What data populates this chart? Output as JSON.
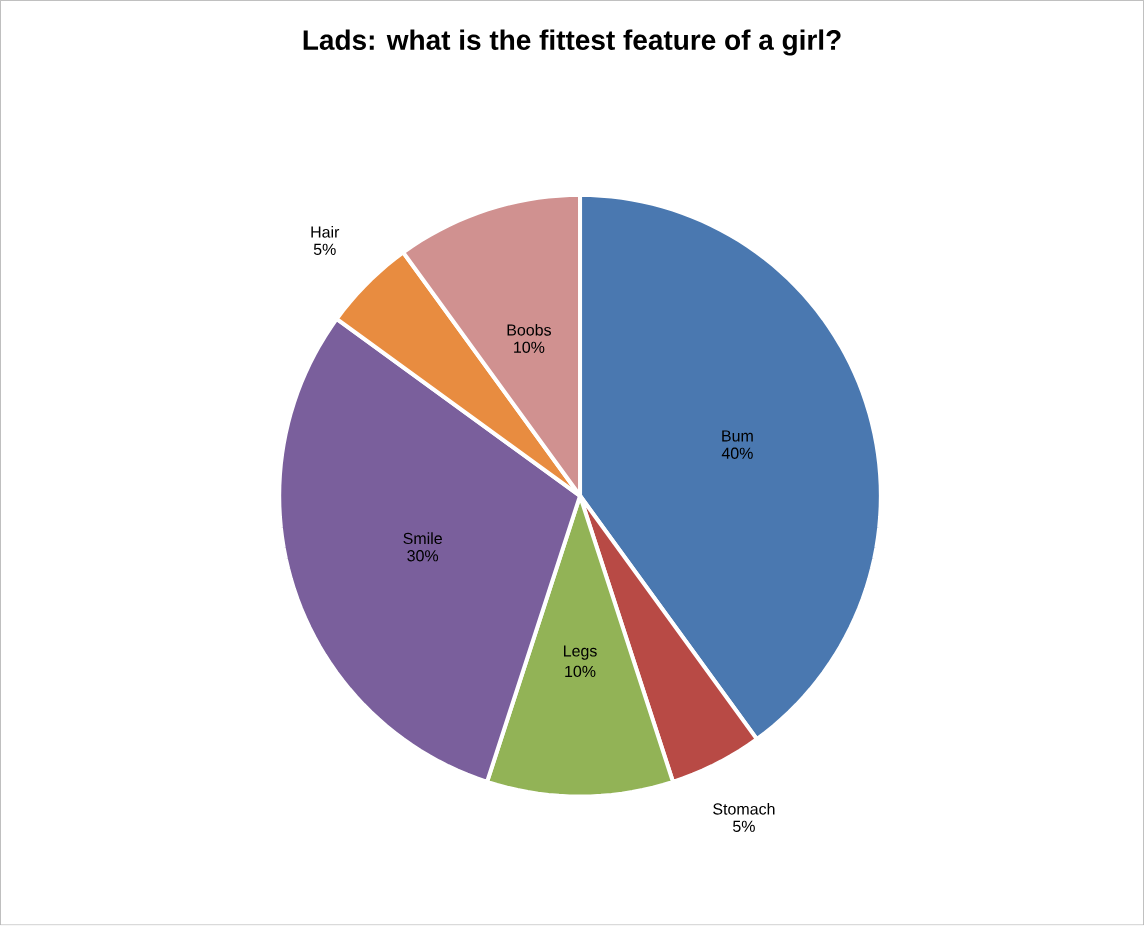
{
  "chart_data": {
    "type": "pie",
    "title": "Lads: what is the fittest feature of a girl?",
    "categories": [
      "Bum",
      "Stomach",
      "Legs",
      "Smile",
      "Hair",
      "Boobs"
    ],
    "values": [
      40,
      5,
      10,
      30,
      5,
      10
    ],
    "value_labels": [
      "40%",
      "5%",
      "10%",
      "30%",
      "5%",
      "10%"
    ],
    "colors": [
      "#4a78b0",
      "#b84a45",
      "#92b356",
      "#7a5f9c",
      "#e88c40",
      "#d09190"
    ]
  }
}
